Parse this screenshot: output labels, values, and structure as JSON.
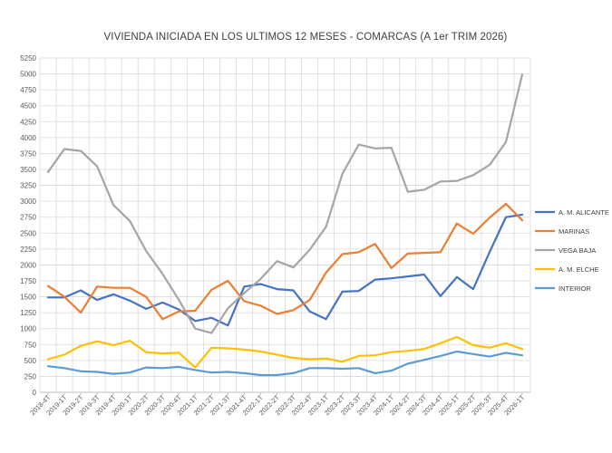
{
  "chart_data": {
    "type": "line",
    "title": "VIVIENDA INICIADA EN LOS ULTIMOS 12 MESES - COMARCAS (A 1er TRIM 2026)",
    "ylim": [
      0,
      5250
    ],
    "yticks": [
      0,
      250,
      500,
      750,
      1000,
      1250,
      1500,
      1750,
      2000,
      2250,
      2500,
      2750,
      3000,
      3250,
      3500,
      3750,
      4000,
      4250,
      4500,
      4750,
      5000,
      5250
    ],
    "grid": true,
    "legend_position": "right",
    "categories": [
      "2018-4T",
      "2019-1T",
      "2019-2T",
      "2019-3T",
      "2019-4T",
      "2020-1T",
      "2020-2T",
      "2020-3T",
      "2020-4T",
      "2021-1T",
      "2021-2T",
      "2021-3T",
      "2021-4T",
      "2022-1T",
      "2022-2T",
      "2022-3T",
      "2022-4T",
      "2023-1T",
      "2023-2T",
      "2023-3T",
      "2023-4T",
      "2024-1T",
      "2024-2T",
      "2024-3T",
      "2024-4T",
      "2025-1T",
      "2025-2T",
      "2025-3T",
      "2025-4T",
      "2026-1T"
    ],
    "series": [
      {
        "name": "A. M. ALICANTE",
        "color": "#4472C4",
        "values": [
          1490,
          1490,
          1600,
          1450,
          1540,
          1440,
          1310,
          1410,
          1300,
          1120,
          1170,
          1050,
          1660,
          1700,
          1620,
          1600,
          1270,
          1150,
          1580,
          1590,
          1770,
          1790,
          1820,
          1850,
          1510,
          1810,
          1620,
          2200,
          2750,
          2790
        ]
      },
      {
        "name": "MARINAS",
        "color": "#ED7D31",
        "values": [
          1670,
          1500,
          1250,
          1660,
          1640,
          1640,
          1500,
          1150,
          1270,
          1280,
          1610,
          1750,
          1430,
          1360,
          1230,
          1290,
          1450,
          1880,
          2170,
          2200,
          2330,
          1950,
          2180,
          2190,
          2200,
          2650,
          2490,
          2740,
          2960,
          2700
        ]
      },
      {
        "name": "VEGA BAJA",
        "color": "#A5A5A5",
        "values": [
          3460,
          3820,
          3790,
          3550,
          2940,
          2690,
          2220,
          1860,
          1450,
          1000,
          930,
          1320,
          1560,
          1780,
          2060,
          1960,
          2240,
          2600,
          3430,
          3890,
          3830,
          3840,
          3150,
          3180,
          3310,
          3320,
          3410,
          3570,
          3930,
          4990
        ]
      },
      {
        "name": "A. M. ELCHE",
        "color": "#FFC000",
        "values": [
          520,
          590,
          730,
          800,
          740,
          810,
          630,
          610,
          620,
          390,
          700,
          690,
          670,
          640,
          590,
          540,
          520,
          530,
          480,
          570,
          580,
          630,
          650,
          680,
          770,
          870,
          740,
          700,
          770,
          680
        ]
      },
      {
        "name": "INTERIOR",
        "color": "#5B9BD5",
        "values": [
          410,
          380,
          330,
          320,
          290,
          310,
          390,
          380,
          400,
          350,
          310,
          320,
          300,
          270,
          270,
          300,
          380,
          380,
          370,
          380,
          300,
          340,
          450,
          510,
          570,
          640,
          600,
          560,
          620,
          580
        ]
      }
    ]
  }
}
